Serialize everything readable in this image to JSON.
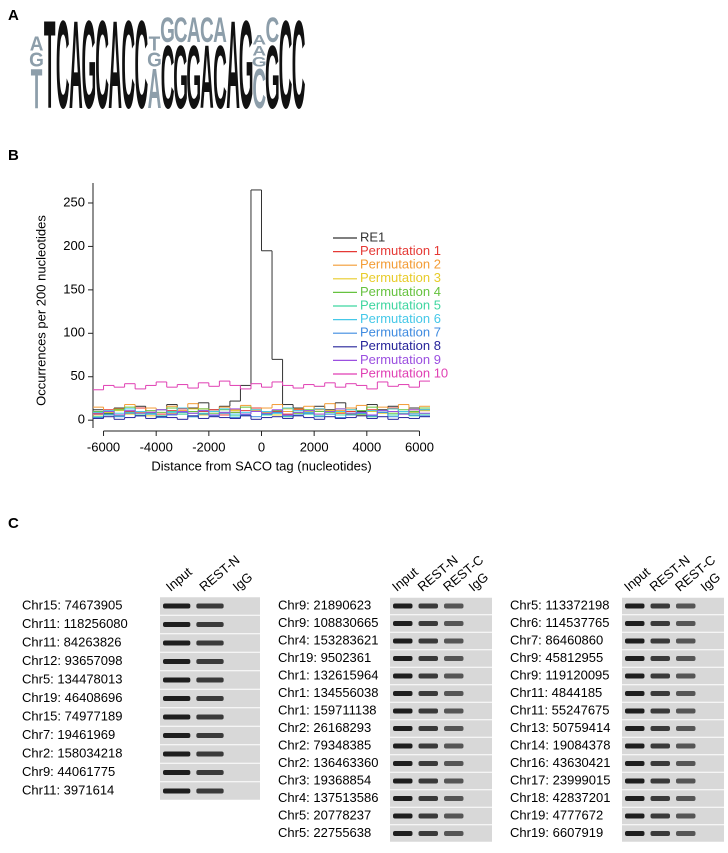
{
  "panel_a": {
    "label": "A",
    "logo": [
      [
        "A",
        "G",
        "T"
      ],
      [
        "T"
      ],
      [
        "C"
      ],
      [
        "A"
      ],
      [
        "G"
      ],
      [
        "C"
      ],
      [
        "A"
      ],
      [
        "C"
      ],
      [
        "C"
      ],
      [
        "T",
        "G",
        "A"
      ],
      [
        "G",
        "C"
      ],
      [
        "C",
        "G"
      ],
      [
        "A",
        "G"
      ],
      [
        "C",
        "A"
      ],
      [
        "A",
        "C"
      ],
      [
        "A"
      ],
      [
        "G"
      ],
      [
        "A",
        "A",
        "G",
        "C"
      ],
      [
        "C",
        "G"
      ],
      [
        "C"
      ],
      [
        "C"
      ]
    ]
  },
  "panel_b": {
    "label": "B"
  },
  "chart_data": {
    "type": "histogram",
    "xlabel": "Distance from SACO tag (nucleotides)",
    "ylabel": "Occurrences per 200 nucleotides",
    "bins": [
      -6400,
      -6000,
      -5600,
      -5200,
      -4800,
      -4400,
      -4000,
      -3600,
      -3200,
      -2800,
      -2400,
      -2000,
      -1600,
      -1200,
      -800,
      -400,
      0,
      400,
      800,
      1200,
      1600,
      2000,
      2400,
      2800,
      3200,
      3600,
      4000,
      4400,
      4800,
      5200,
      5600,
      6000,
      6400
    ],
    "xlim": [
      -6400,
      6400
    ],
    "xticks": [
      -6000,
      -4000,
      -2000,
      0,
      2000,
      4000,
      6000
    ],
    "ylim": [
      -9,
      273
    ],
    "yticks": [
      0,
      50,
      100,
      150,
      200,
      250
    ],
    "legend": "upper right",
    "series": [
      {
        "name": "RE1",
        "color": "#333333",
        "values": [
          12,
          8,
          14,
          10,
          16,
          9,
          12,
          18,
          10,
          14,
          20,
          12,
          16,
          22,
          40,
          265,
          195,
          70,
          18,
          14,
          10,
          16,
          12,
          20,
          14,
          10,
          18,
          12,
          16,
          10,
          14,
          12
        ]
      },
      {
        "name": "Permutation 1",
        "color": "#e53935",
        "values": [
          8,
          12,
          6,
          10,
          14,
          9,
          7,
          11,
          13,
          8,
          10,
          12,
          6,
          9,
          11,
          14,
          8,
          10,
          7,
          12,
          9,
          13,
          11,
          8,
          10,
          6,
          12,
          9,
          14,
          10,
          8,
          11
        ]
      },
      {
        "name": "Permutation 2",
        "color": "#f39c35",
        "values": [
          15,
          10,
          13,
          18,
          9,
          14,
          12,
          16,
          11,
          19,
          13,
          10,
          15,
          12,
          17,
          11,
          14,
          18,
          10,
          13,
          16,
          12,
          19,
          11,
          14,
          17,
          10,
          15,
          13,
          18,
          12,
          16
        ]
      },
      {
        "name": "Permutation 3",
        "color": "#e8cc2a",
        "values": [
          6,
          9,
          11,
          7,
          10,
          5,
          12,
          8,
          9,
          13,
          6,
          10,
          8,
          11,
          7,
          12,
          9,
          6,
          13,
          8,
          10,
          7,
          11,
          9,
          12,
          6,
          10,
          8,
          13,
          7,
          9,
          11
        ]
      },
      {
        "name": "Permutation 4",
        "color": "#66c23f",
        "values": [
          10,
          7,
          12,
          15,
          8,
          11,
          9,
          14,
          7,
          10,
          13,
          8,
          12,
          9,
          15,
          10,
          7,
          11,
          14,
          8,
          12,
          10,
          9,
          13,
          7,
          11,
          15,
          9,
          8,
          12,
          10,
          14
        ]
      },
      {
        "name": "Permutation 5",
        "color": "#3fd6a0",
        "values": [
          4,
          7,
          5,
          9,
          6,
          8,
          5,
          10,
          7,
          4,
          8,
          6,
          9,
          5,
          7,
          10,
          6,
          8,
          4,
          9,
          7,
          5,
          10,
          6,
          8,
          7,
          4,
          9,
          6,
          8,
          5,
          7
        ]
      },
      {
        "name": "Permutation 6",
        "color": "#45c8e8",
        "values": [
          9,
          11,
          8,
          13,
          10,
          7,
          12,
          9,
          14,
          8,
          11,
          10,
          13,
          7,
          9,
          12,
          10,
          8,
          14,
          11,
          9,
          13,
          7,
          10,
          12,
          8,
          11,
          9,
          13,
          10,
          8,
          12
        ]
      },
      {
        "name": "Permutation 7",
        "color": "#3f8be0",
        "values": [
          3,
          6,
          4,
          8,
          5,
          7,
          3,
          6,
          9,
          4,
          7,
          5,
          8,
          3,
          6,
          4,
          7,
          9,
          5,
          6,
          8,
          4,
          7,
          3,
          6,
          8,
          5,
          9,
          4,
          7,
          6,
          5
        ]
      },
      {
        "name": "Permutation 8",
        "color": "#26249a",
        "values": [
          2,
          4,
          1,
          3,
          5,
          2,
          4,
          3,
          1,
          5,
          2,
          4,
          3,
          2,
          5,
          1,
          3,
          4,
          2,
          5,
          3,
          1,
          4,
          2,
          3,
          5,
          2,
          4,
          1,
          3,
          2,
          4
        ]
      },
      {
        "name": "Permutation 9",
        "color": "#9b4fe0",
        "values": [
          7,
          10,
          6,
          11,
          8,
          9,
          12,
          7,
          10,
          8,
          11,
          6,
          9,
          13,
          7,
          10,
          8,
          12,
          6,
          9,
          11,
          7,
          10,
          13,
          8,
          9,
          6,
          11,
          10,
          7,
          12,
          8
        ]
      },
      {
        "name": "Permutation 10",
        "color": "#e03fb3",
        "values": [
          35,
          40,
          38,
          42,
          36,
          40,
          44,
          38,
          41,
          37,
          43,
          39,
          45,
          40,
          36,
          42,
          38,
          44,
          40,
          37,
          41,
          39,
          43,
          38,
          42,
          40,
          36,
          44,
          39,
          41,
          38,
          45
        ]
      }
    ]
  },
  "panel_c": {
    "label": "C",
    "gels": [
      {
        "columns": [
          "Input",
          "REST-N",
          "IgG"
        ],
        "rows": [
          "Chr15: 74673905",
          "Chr11: 118256080",
          "Chr11: 84263826",
          "Chr12: 93657098",
          "Chr5: 134478013",
          "Chr19: 46408696",
          "Chr15: 74977189",
          "Chr7: 19461969",
          "Chr2: 158034218",
          "Chr9: 44061775",
          "Chr11: 3971614"
        ]
      },
      {
        "columns": [
          "Input",
          "REST-N",
          "REST-C",
          "IgG"
        ],
        "rows": [
          "Chr9: 21890623",
          "Chr9: 108830665",
          "Chr4: 153283621",
          "Chr19: 9502361",
          "Chr1: 132615964",
          "Chr1: 134556038",
          "Chr1: 159711138",
          "Chr2: 26168293",
          "Chr2: 79348385",
          "Chr2: 136463360",
          "Chr3: 19368854",
          "Chr4: 137513586",
          "Chr5: 20778237",
          "Chr5: 22755638"
        ]
      },
      {
        "columns": [
          "Input",
          "REST-N",
          "REST-C",
          "IgG"
        ],
        "rows": [
          "Chr5: 113372198",
          "Chr6: 114537765",
          "Chr7: 86460860",
          "Chr9: 45812955",
          "Chr9: 119120095",
          "Chr11: 4844185",
          "Chr11: 55247675",
          "Chr13: 50759414",
          "Chr14: 19084378",
          "Chr16: 43630421",
          "Chr17: 23999015",
          "Chr18: 42837201",
          "Chr19: 4777672",
          "Chr19: 6607919"
        ]
      }
    ]
  }
}
